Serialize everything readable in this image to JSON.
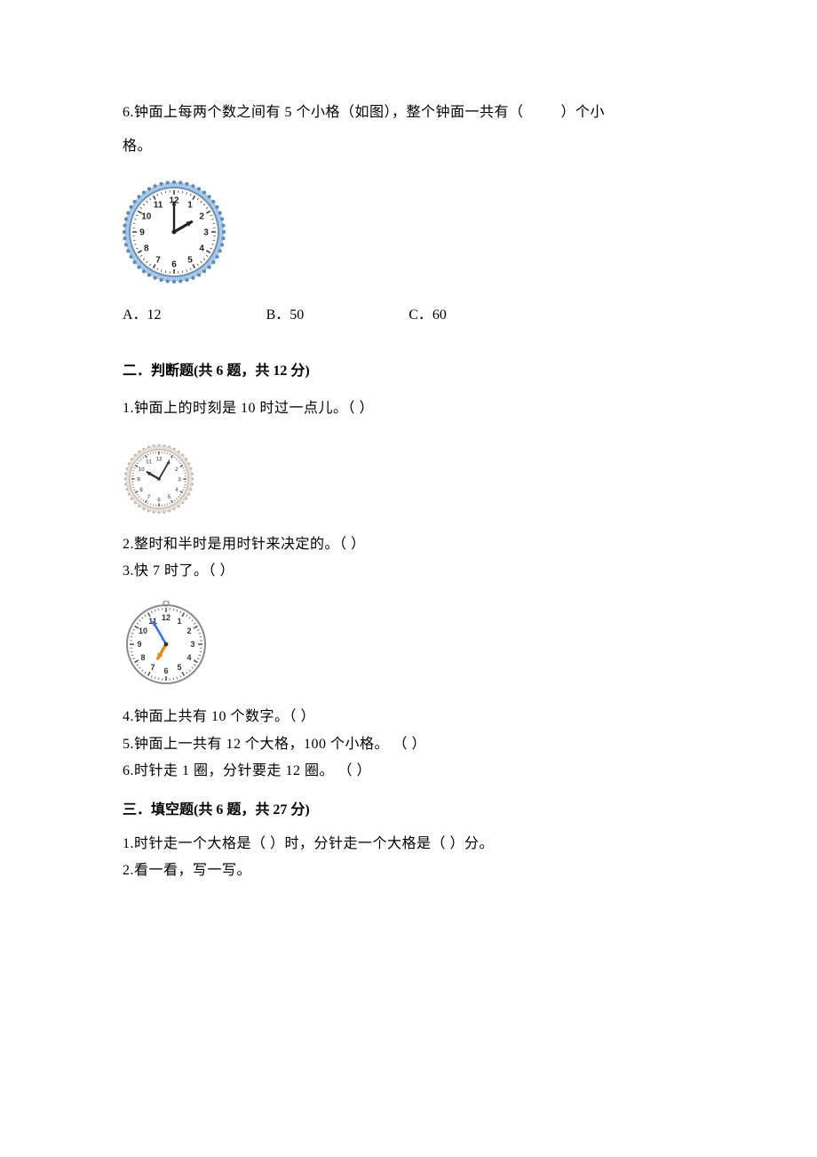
{
  "q6": {
    "text_a": "6.钟面上每两个数之间有 5 个小格（如图），整个钟面一共有（",
    "text_b": "）个小",
    "text_c": "格。",
    "options": {
      "a": "A．12",
      "b": "B．50",
      "c": "C．60"
    },
    "clock": {
      "face_fill": "#ffffff",
      "rim_outer": "#a9c7e8",
      "rim_pattern": "#5a89b6",
      "rim_inner": "#6f93b3",
      "tick_color": "#444444",
      "num_color": "#222222",
      "hand_color": "#222222",
      "hour_hand_to": 2,
      "minute_hand_to": 12,
      "radius": 54
    }
  },
  "section2": {
    "title_pre": "二．判断题",
    "title_post": "(共 6 题，共 12 分)",
    "items": {
      "1": "1.钟面上的时刻是 10 时过一点儿。（       ）",
      "2": "2.整时和半时是用时针来决定的。（       ）",
      "3": "3.快 7 时了。（       ）",
      "4": "4.钟面上共有 10 个数字。（       ）",
      "5": "5.钟面上一共有 12 个大格，100 个小格。     （       ）",
      "6": "6.时针走 1 圈，分针要走 12 圈。       （     ）"
    },
    "clock1": {
      "face_fill": "#ffffff",
      "rim_outer": "#e6e0d8",
      "rim_pattern": "#bfb8ae",
      "rim_inner": "#c4bdb2",
      "tick_color": "#666666",
      "num_color": "#777777",
      "hand_color": "#333333",
      "hour_hand_to": 10,
      "minute_hand_to": 1,
      "radius": 36
    },
    "clock2": {
      "face_fill": "#ffffff",
      "rim_color": "#8a8a8a",
      "tick_color": "#555555",
      "num_color": "#333333",
      "minute_hand_color": "#3a72e0",
      "hour_hand_color": "#e08a1e",
      "hour_hand_to": 7,
      "minute_hand_to": 11,
      "radius": 44
    }
  },
  "section3": {
    "title_pre": "三．填空题",
    "title_post": "(共 6 题，共 27 分)",
    "items": {
      "1": "1.时针走一个大格是（    ）时，分针走一个大格是（    ）分。",
      "2": "2.看一看，写一写。"
    }
  }
}
